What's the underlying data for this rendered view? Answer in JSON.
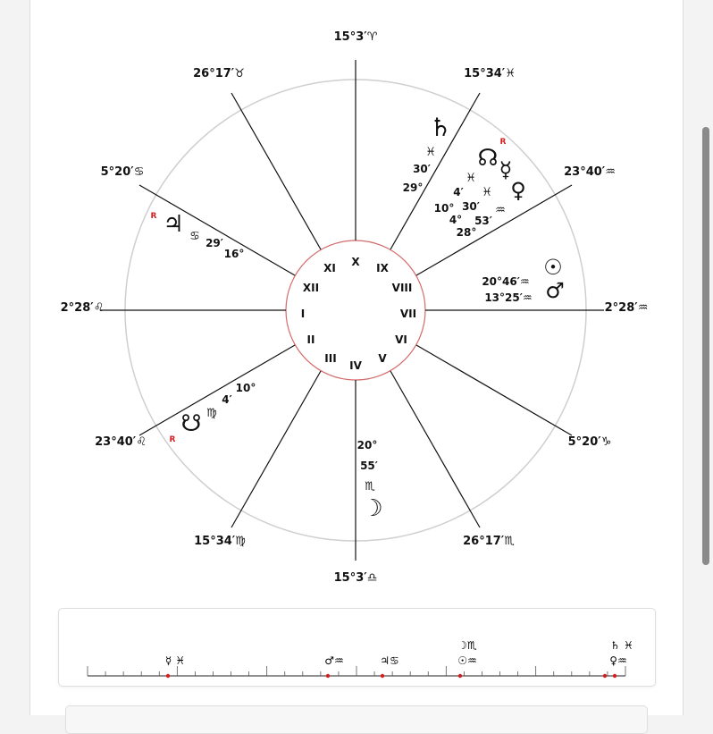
{
  "chart": {
    "house_cusps": [
      {
        "house": "I",
        "degree": "2°28′",
        "sign": "♌"
      },
      {
        "house": "II",
        "degree": "23°40′",
        "sign": "♌"
      },
      {
        "house": "III",
        "degree": "15°34′",
        "sign": "♍"
      },
      {
        "house": "IV",
        "degree": "15°3′",
        "sign": "♎"
      },
      {
        "house": "V",
        "degree": "26°17′",
        "sign": "♏"
      },
      {
        "house": "VI",
        "degree": "5°20′",
        "sign": "♑"
      },
      {
        "house": "VII",
        "degree": "2°28′",
        "sign": "♒"
      },
      {
        "house": "VIII",
        "degree": "23°40′",
        "sign": "♒"
      },
      {
        "house": "IX",
        "degree": "15°34′",
        "sign": "♓"
      },
      {
        "house": "X",
        "degree": "15°3′",
        "sign": "♈"
      },
      {
        "house": "XI",
        "degree": "26°17′",
        "sign": "♉"
      },
      {
        "house": "XII",
        "degree": "5°20′",
        "sign": "♋"
      }
    ],
    "planets": [
      {
        "name": "Saturn",
        "glyph": "♄",
        "sign": "♓",
        "deg": "29°",
        "min": "30′",
        "retro": ""
      },
      {
        "name": "North Node",
        "glyph": "☊",
        "sign": "♓",
        "deg": "10°",
        "min": "4′",
        "retro": "R"
      },
      {
        "name": "Mercury",
        "glyph": "☿",
        "sign": "♓",
        "deg": "4°",
        "min": "30′",
        "retro": ""
      },
      {
        "name": "Venus",
        "glyph": "♀",
        "sign": "♒",
        "deg": "28°",
        "min": "53′",
        "retro": ""
      },
      {
        "name": "Sun",
        "glyph": "☉",
        "sign": "♒",
        "deg": "20°",
        "min": "46′",
        "retro": ""
      },
      {
        "name": "Mars",
        "glyph": "♂",
        "sign": "♒",
        "deg": "13°",
        "min": "25′",
        "retro": ""
      },
      {
        "name": "Jupiter",
        "glyph": "♃",
        "sign": "♋",
        "deg": "16°",
        "min": "29′",
        "retro": "R"
      },
      {
        "name": "South Node",
        "glyph": "☋",
        "sign": "♍",
        "deg": "10°",
        "min": "4′",
        "retro": "R"
      },
      {
        "name": "Moon",
        "glyph": "☽",
        "sign": "♏",
        "deg": "20°",
        "min": "55′",
        "retro": ""
      }
    ]
  },
  "timeline": {
    "groups": [
      {
        "lines": [
          "☿ ♓"
        ]
      },
      {
        "lines": [
          "♂♒"
        ]
      },
      {
        "lines": [
          "♃♋"
        ]
      },
      {
        "lines": [
          "☽♏",
          "☉♒"
        ]
      },
      {
        "lines": [
          "♄ ♓",
          "♀♒"
        ]
      }
    ]
  },
  "colors": {
    "retro": "#d42020",
    "inner_circle": "#d46a6a",
    "outer_circle": "#cfcfcf",
    "lines": "#111111"
  }
}
